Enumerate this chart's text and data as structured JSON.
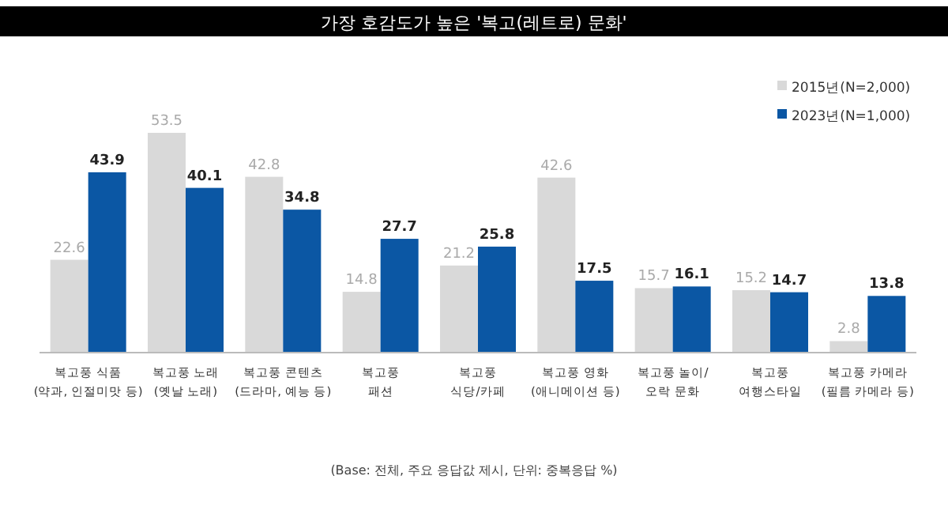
{
  "chart_data": {
    "type": "bar",
    "title": "가장 호감도가 높은 '복고(레트로) 문화'",
    "categories": [
      "복고풍 식품\n(약과, 인절미맛 등)",
      "복고풍 노래\n(옛날 노래)",
      "복고풍 콘텐츠\n(드라마, 예능 등)",
      "복고풍\n패션",
      "복고풍\n식당/카페",
      "복고풍 영화\n(애니메이션 등)",
      "복고풍 놀이/\n오락 문화",
      "복고풍\n여행스타일",
      "복고풍 카메라\n(필름 카메라 등)"
    ],
    "series": [
      {
        "name": "2015년(N=2,000)",
        "color": "#d9d9d9",
        "values": [
          22.6,
          53.5,
          42.8,
          14.8,
          21.2,
          42.6,
          15.7,
          15.2,
          2.8
        ]
      },
      {
        "name": "2023년(N=1,000)",
        "color": "#0b57a4",
        "values": [
          43.9,
          40.1,
          34.8,
          27.7,
          25.8,
          17.5,
          16.1,
          14.7,
          13.8
        ]
      }
    ],
    "data_labels": true,
    "legend": "top right",
    "annotations": [
      "(Base: 전체, 주요 응답값 제시, 단위: 중복응답 %)"
    ]
  }
}
